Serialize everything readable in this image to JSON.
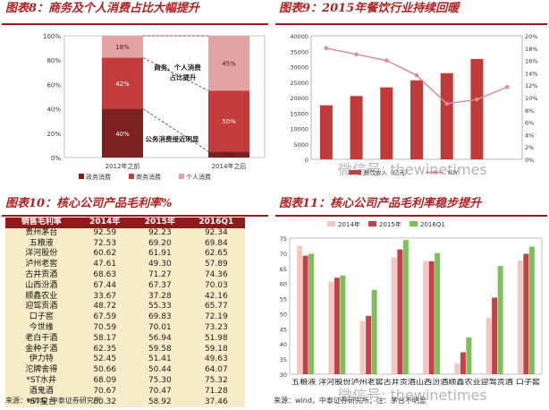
{
  "fig8": {
    "title": "图表8：商务及个人消费占比大幅提升",
    "annotations": {
      "business_personal_1": "商务、个人消费",
      "business_personal_2": "占比提升",
      "government_drop": "公务消费接近明显"
    },
    "chart_data": {
      "type": "bar",
      "stacked": true,
      "categories": [
        "2012年之前",
        "2014年之后"
      ],
      "series": [
        {
          "name": "政务消费",
          "values": [
            40,
            5
          ],
          "labels": [
            "40%",
            "5%"
          ],
          "color": "#7c1f1f"
        },
        {
          "name": "商务消费",
          "values": [
            42,
            50
          ],
          "labels": [
            "42%",
            "50%"
          ],
          "color": "#c43b3b"
        },
        {
          "name": "个人消费",
          "values": [
            18,
            45
          ],
          "labels": [
            "18%",
            "45%"
          ],
          "color": "#e4a3a3"
        }
      ],
      "ylim": [
        0,
        100
      ],
      "yticks": [
        "0%",
        "20%",
        "40%",
        "60%",
        "80%",
        "100%"
      ]
    }
  },
  "fig9": {
    "title": "图表9：2015年餐饮行业持续回暖",
    "chart_data": {
      "type": "bar",
      "categories": [
        "2009",
        "2010",
        "2011",
        "2012",
        "2013",
        "2014",
        "2015"
      ],
      "series": [
        {
          "name": "餐饮收入（亿元）",
          "kind": "bar",
          "axis": "left",
          "values": [
            17500,
            20500,
            23300,
            25600,
            27900,
            32500,
            0
          ],
          "color": "#c03a3a"
        },
        {
          "name": "YOY",
          "kind": "line",
          "axis": "right",
          "values": [
            18,
            17,
            16,
            13.6,
            9,
            9.7,
            11.7
          ],
          "color": "#d98c9c"
        }
      ],
      "ylim": [
        0,
        40000
      ],
      "yticks": [
        "0",
        "5000",
        "10000",
        "15000",
        "20000",
        "25000",
        "30000",
        "35000",
        "40000"
      ],
      "y2lim": [
        0,
        20
      ],
      "y2ticks": [
        "0%",
        "2%",
        "4%",
        "6%",
        "8%",
        "10%",
        "12%",
        "14%",
        "16%",
        "18%",
        "20%"
      ],
      "legend": "bottom"
    }
  },
  "fig10": {
    "title": "图表10：核心公司产品毛利率%",
    "chart_data": {
      "type": "table",
      "header": [
        "销售毛利率",
        "2014年",
        "2015年",
        "2016Q1"
      ],
      "rows": [
        [
          "贵州茅台",
          "92.59",
          "92.23",
          "92.34"
        ],
        [
          "五粮液",
          "72.53",
          "69.20",
          "69.84"
        ],
        [
          "洋河股份",
          "60.62",
          "61.91",
          "62.65"
        ],
        [
          "泸州老窖",
          "47.61",
          "49.30",
          "57.89"
        ],
        [
          "古井贡酒",
          "68.63",
          "71.27",
          "74.36"
        ],
        [
          "山西汾酒",
          "67.44",
          "67.37",
          "70.03"
        ],
        [
          "顺鑫农业",
          "33.67",
          "37.28",
          "42.16"
        ],
        [
          "迎驾贡酒",
          "48.72",
          "55.33",
          "65.77"
        ],
        [
          "口子窖",
          "67.59",
          "69.83",
          "72.19"
        ],
        [
          "今世缘",
          "70.59",
          "70.01",
          "73.23"
        ],
        [
          "老白干酒",
          "58.17",
          "56.94",
          "51.98"
        ],
        [
          "金种子酒",
          "62.35",
          "59.58",
          "59.18"
        ],
        [
          "伊力特",
          "52.45",
          "51.41",
          "49.63"
        ],
        [
          "沱牌舍得",
          "50.66",
          "50.44",
          "64.07"
        ],
        [
          "*ST水井",
          "68.09",
          "75.30",
          "75.32"
        ],
        [
          "酒鬼酒",
          "70.67",
          "70.47",
          "71.28"
        ],
        [
          "*ST皇台",
          "60.32",
          "58.92",
          "37.46"
        ]
      ]
    }
  },
  "fig11": {
    "title": "图表11：核心公司产品毛利率稳步提升",
    "chart_data": {
      "type": "bar",
      "categories": [
        "五粮液",
        "洋河股份",
        "泸州老窖",
        "古井贡酒",
        "山西汾酒",
        "顺鑫农业",
        "迎驾贡酒",
        "口子窖"
      ],
      "xtick_text": "五粮液 洋河股份泸州老窖古井贡酒山西汾酒顺鑫农业迎驾贡酒 口子窖",
      "series": [
        {
          "name": "2014年",
          "values": [
            72.53,
            60.62,
            47.61,
            68.63,
            67.44,
            33.67,
            48.72,
            67.59
          ],
          "color": "#f2c8c0"
        },
        {
          "name": "2015年",
          "values": [
            69.2,
            61.91,
            49.3,
            71.27,
            67.37,
            37.28,
            55.33,
            69.83
          ],
          "color": "#c2424a"
        },
        {
          "name": "2016Q1",
          "values": [
            69.84,
            62.65,
            57.89,
            74.36,
            70.03,
            42.16,
            65.77,
            72.19
          ],
          "color": "#7cc05a"
        }
      ],
      "ylim": [
        30,
        75
      ],
      "yticks": [
        "30",
        "35",
        "40",
        "45",
        "50",
        "55",
        "60",
        "65",
        "70",
        "75"
      ],
      "legend": "top"
    }
  },
  "sources": {
    "left": "来源：wind，中泰证券研究所",
    "right": "来源：wind，中泰证券研究所；注：茅台不明显"
  },
  "watermarks": {
    "mid": "微信号: thewinetimes",
    "bottom": "微信号: thewinetimes"
  }
}
